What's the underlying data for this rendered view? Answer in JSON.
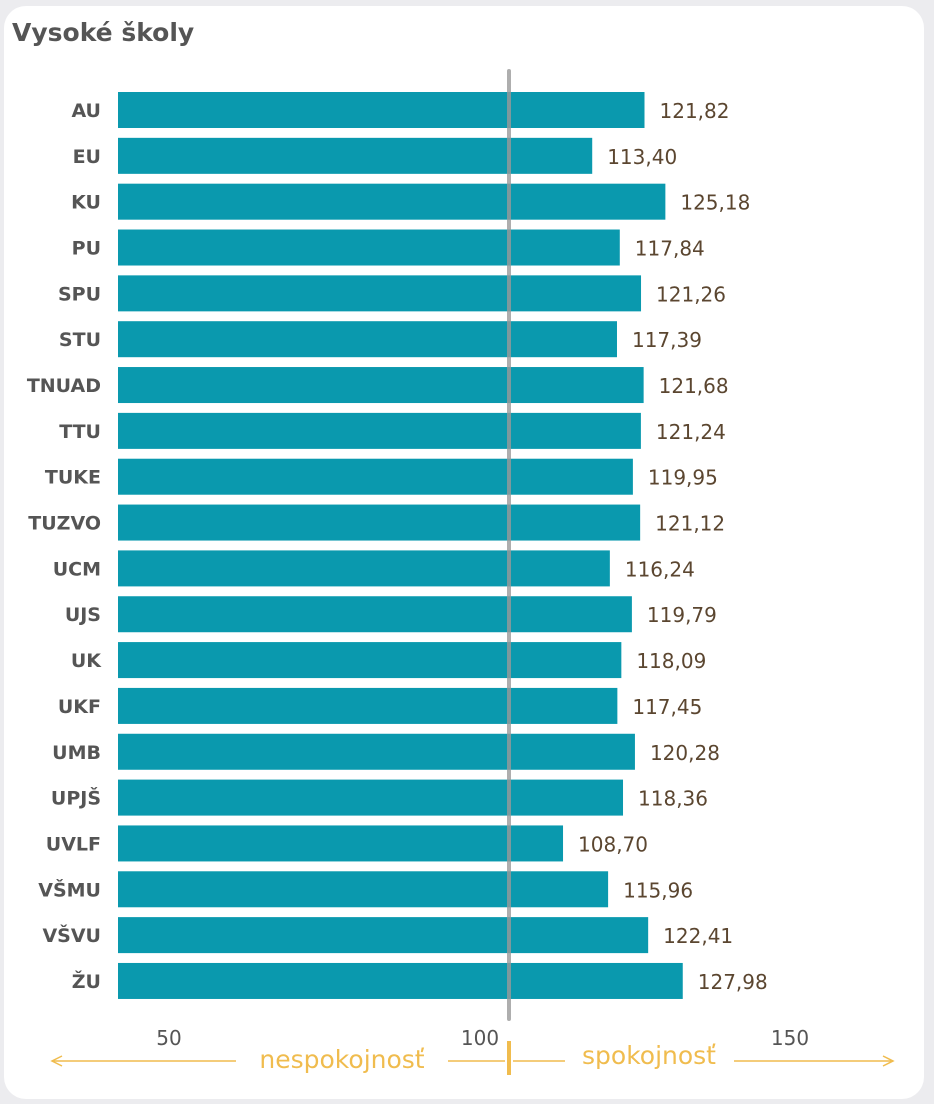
{
  "chart_data": {
    "type": "bar",
    "orientation": "horizontal",
    "title": "Vysoké školy",
    "categories": [
      "AU",
      "EU",
      "KU",
      "PU",
      "SPU",
      "STU",
      "TNUAD",
      "TTU",
      "TUKE",
      "TUZVO",
      "UCM",
      "UJS",
      "UK",
      "UKF",
      "UMB",
      "UPJŠ",
      "UVLF",
      "VŠMU",
      "VŠVU",
      "ŽU"
    ],
    "values": [
      121.82,
      113.4,
      125.18,
      117.84,
      121.26,
      117.39,
      121.68,
      121.24,
      119.95,
      121.12,
      116.24,
      119.79,
      118.09,
      117.45,
      120.28,
      118.36,
      108.7,
      115.96,
      122.41,
      127.98
    ],
    "value_labels": [
      "121,82",
      "113,40",
      "125,18",
      "117,84",
      "121,26",
      "117,39",
      "121,68",
      "121,24",
      "119,95",
      "121,12",
      "116,24",
      "119,79",
      "118,09",
      "117,45",
      "120,28",
      "118,36",
      "108,70",
      "115,96",
      "122,41",
      "127,98"
    ],
    "x_ticks": [
      {
        "value": 50,
        "label": "50"
      },
      {
        "value": 100,
        "label": "100"
      },
      {
        "value": 150,
        "label": "150"
      }
    ],
    "xlim": [
      50,
      150
    ],
    "reference_line": 100,
    "grid": false,
    "legend": "none",
    "left_scale_label": "nespokojnosť",
    "right_scale_label": "spokojnosť",
    "colors": {
      "bar": "#0a99ae",
      "reference_line": "#9a9a9a",
      "scale": "#f0bc4e",
      "value_text": "#5b4630",
      "label_text": "#555555"
    }
  }
}
